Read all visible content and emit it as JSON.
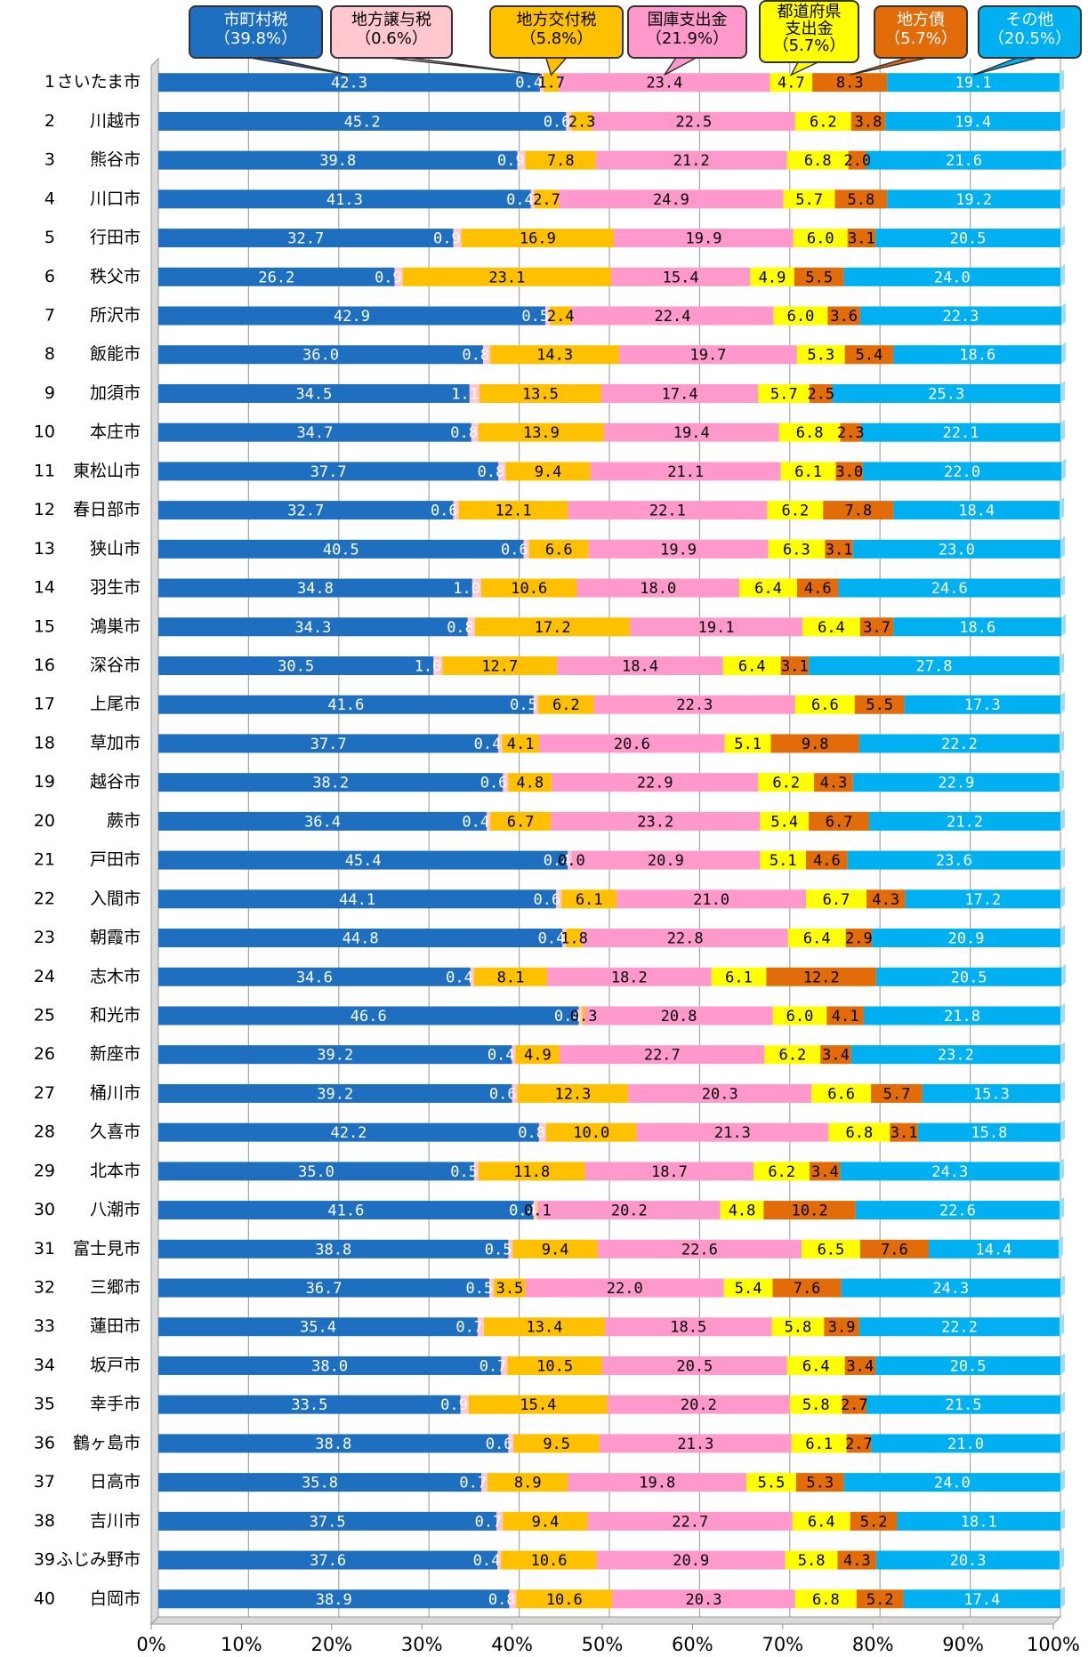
{
  "chart_data": {
    "type": "stacked-bar-horizontal",
    "row_numbers": [
      1,
      2,
      3,
      4,
      5,
      6,
      7,
      8,
      9,
      10,
      11,
      12,
      13,
      14,
      15,
      16,
      17,
      18,
      19,
      20,
      21,
      22,
      23,
      24,
      25,
      26,
      27,
      28,
      29,
      30,
      31,
      32,
      33,
      34,
      35,
      36,
      37,
      38,
      39,
      40
    ],
    "categories": [
      "さいたま市",
      "川越市",
      "熊谷市",
      "川口市",
      "行田市",
      "秩父市",
      "所沢市",
      "飯能市",
      "加須市",
      "本庄市",
      "東松山市",
      "春日部市",
      "狭山市",
      "羽生市",
      "鴻巣市",
      "深谷市",
      "上尾市",
      "草加市",
      "越谷市",
      "蕨市",
      "戸田市",
      "入間市",
      "朝霞市",
      "志木市",
      "和光市",
      "新座市",
      "桶川市",
      "久喜市",
      "北本市",
      "八潮市",
      "富士見市",
      "三郷市",
      "蓮田市",
      "坂戸市",
      "幸手市",
      "鶴ヶ島市",
      "日高市",
      "吉川市",
      "ふじみ野市",
      "白岡市"
    ],
    "series": [
      {
        "name": "市町村税",
        "share_label": "（39.8%）",
        "color": "#1f6fc0",
        "label_color": "#ffffff",
        "legend_text_color": "#ffffff",
        "values": [
          42.3,
          45.2,
          39.8,
          41.3,
          32.7,
          26.2,
          42.9,
          36.0,
          34.5,
          34.7,
          37.7,
          32.7,
          40.5,
          34.8,
          34.3,
          30.5,
          41.6,
          37.7,
          38.2,
          36.4,
          45.4,
          44.1,
          44.8,
          34.6,
          46.6,
          39.2,
          39.2,
          42.2,
          35.0,
          41.6,
          38.8,
          36.7,
          35.4,
          38.0,
          33.5,
          38.8,
          35.8,
          37.5,
          37.6,
          38.9
        ],
        "value_labels": [
          "42.3",
          "45.2",
          "39.8",
          "41.3",
          "32.7",
          "26.2",
          "42.9",
          "36.0",
          "34.5",
          "34.7",
          "37.7",
          "32.7",
          "40.5",
          "34.8",
          "34.3",
          "30.5",
          "41.6",
          "37.7",
          "38.2",
          "36.4",
          "45.4",
          "44.1",
          "44.8",
          "34.6",
          "46.6",
          "39.2",
          "39.2",
          "42.2",
          "35.0",
          "41.6",
          "38.8",
          "36.7",
          "35.4",
          "38.0",
          "33.5",
          "38.8",
          "35.8",
          "37.5",
          "37.6",
          "38.9"
        ]
      },
      {
        "name": "地方譲与税",
        "share_label": "（0.6%）",
        "color": "#ffc7ce",
        "label_color": "#ffffff",
        "legend_text_color": "#000000",
        "values": [
          0.4,
          0.6,
          0.9,
          0.4,
          0.9,
          0.9,
          0.5,
          0.8,
          1.1,
          0.8,
          0.8,
          0.6,
          0.6,
          1.0,
          0.8,
          1.0,
          0.5,
          0.4,
          0.6,
          0.4,
          0.4,
          0.6,
          0.4,
          0.4,
          0.4,
          0.4,
          0.6,
          0.8,
          0.5,
          0.4,
          0.5,
          0.5,
          0.7,
          0.7,
          0.9,
          0.6,
          0.7,
          0.7,
          0.4,
          0.8
        ],
        "value_labels": [
          "0.4",
          "0.6",
          "0.9",
          "0.4",
          "0.9",
          "0.9",
          "0.5",
          "0.8",
          "1.1",
          "0.8",
          "0.8",
          "0.6",
          "0.6",
          "1.0",
          "0.8",
          "1.0",
          "0.5",
          "0.4",
          "0.6",
          "0.4",
          "0.4",
          "0.6",
          "0.4",
          "0.4",
          "0.4",
          "0.4",
          "0.6",
          "0.8",
          "0.5",
          "0.4",
          "0.5",
          "0.5",
          "0.7",
          "0.7",
          "0.9",
          "0.6",
          "0.7",
          "0.7",
          "0.4",
          "0.8"
        ]
      },
      {
        "name": "地方交付税",
        "share_label": "（5.8%）",
        "color": "#ffc000",
        "label_color": "#000000",
        "legend_text_color": "#000000",
        "values": [
          1.7,
          2.3,
          7.8,
          2.7,
          16.9,
          23.1,
          2.4,
          14.3,
          13.5,
          13.9,
          9.4,
          12.1,
          6.6,
          10.6,
          17.2,
          12.7,
          6.2,
          4.1,
          4.8,
          6.7,
          0.0,
          6.1,
          1.8,
          8.1,
          0.3,
          4.9,
          12.3,
          10.0,
          11.8,
          0.1,
          9.4,
          3.5,
          13.4,
          10.5,
          15.4,
          9.5,
          8.9,
          9.4,
          10.6,
          10.6
        ],
        "value_labels": [
          "1.7",
          "2.3",
          "7.8",
          "2.7",
          "16.9",
          "23.1",
          "2.4",
          "14.3",
          "13.5",
          "13.9",
          "9.4",
          "12.1",
          "6.6",
          "10.6",
          "17.2",
          "12.7",
          "6.2",
          "4.1",
          "4.8",
          "6.7",
          "0.0",
          "6.1",
          "1.8",
          "8.1",
          "0.3",
          "4.9",
          "12.3",
          "10.0",
          "11.8",
          "0.1",
          "9.4",
          "3.5",
          "13.4",
          "10.5",
          "15.4",
          "9.5",
          "8.9",
          "9.4",
          "10.6",
          "10.6"
        ]
      },
      {
        "name": "国庫支出金",
        "share_label": "（21.9%）",
        "color": "#ff99cc",
        "label_color": "#000000",
        "legend_text_color": "#000000",
        "values": [
          23.4,
          22.5,
          21.2,
          24.9,
          19.9,
          15.4,
          22.4,
          19.7,
          17.4,
          19.4,
          21.1,
          22.1,
          19.9,
          18.0,
          19.1,
          18.4,
          22.3,
          20.6,
          22.9,
          23.2,
          20.9,
          21.0,
          22.8,
          18.2,
          20.8,
          22.7,
          20.3,
          21.3,
          18.7,
          20.2,
          22.6,
          22.0,
          18.5,
          20.5,
          20.2,
          21.3,
          19.8,
          22.7,
          20.9,
          20.3
        ],
        "value_labels": [
          "23.4",
          "22.5",
          "21.2",
          "24.9",
          "19.9",
          "15.4",
          "22.4",
          "19.7",
          "17.4",
          "19.4",
          "21.1",
          "22.1",
          "19.9",
          "18.0",
          "19.1",
          "18.4",
          "22.3",
          "20.6",
          "22.9",
          "23.2",
          "20.9",
          "21.0",
          "22.8",
          "18.2",
          "20.8",
          "22.7",
          "20.3",
          "21.3",
          "18.7",
          "20.2",
          "22.6",
          "22.0",
          "18.5",
          "20.5",
          "20.2",
          "21.3",
          "19.8",
          "22.7",
          "20.9",
          "20.3"
        ]
      },
      {
        "name": "都道府県支出金",
        "share_label": "（5.7%）",
        "color": "#ffff00",
        "label_color": "#000000",
        "legend_text_color": "#000000",
        "values": [
          4.7,
          6.2,
          6.8,
          5.7,
          6.0,
          4.9,
          6.0,
          5.3,
          5.7,
          6.8,
          6.1,
          6.2,
          6.3,
          6.4,
          6.4,
          6.4,
          6.6,
          5.1,
          6.2,
          5.4,
          5.1,
          6.7,
          6.4,
          6.1,
          6.0,
          6.2,
          6.6,
          6.8,
          6.2,
          4.8,
          6.5,
          5.4,
          5.8,
          6.4,
          5.8,
          6.1,
          5.5,
          6.4,
          5.8,
          6.8
        ],
        "value_labels": [
          "4.7",
          "6.2",
          "6.8",
          "5.7",
          "6.0",
          "4.9",
          "6.0",
          "5.3",
          "5.7",
          "6.8",
          "6.1",
          "6.2",
          "6.3",
          "6.4",
          "6.4",
          "6.4",
          "6.6",
          "5.1",
          "6.2",
          "5.4",
          "5.1",
          "6.7",
          "6.4",
          "6.1",
          "6.0",
          "6.2",
          "6.6",
          "6.8",
          "6.2",
          "4.8",
          "6.5",
          "5.4",
          "5.8",
          "6.4",
          "5.8",
          "6.1",
          "5.5",
          "6.4",
          "5.8",
          "6.8"
        ]
      },
      {
        "name": "地方債",
        "share_label": "（5.7%）",
        "color": "#e26b0a",
        "label_color": "#000000",
        "legend_text_color": "#ffffff",
        "values": [
          8.3,
          3.8,
          2.0,
          5.8,
          3.1,
          5.5,
          3.6,
          5.4,
          2.5,
          2.3,
          3.0,
          7.8,
          3.1,
          4.6,
          3.7,
          3.1,
          5.5,
          9.8,
          4.3,
          6.7,
          4.6,
          4.3,
          2.9,
          12.2,
          4.1,
          3.4,
          5.7,
          3.1,
          3.4,
          10.2,
          7.6,
          7.6,
          3.9,
          3.4,
          2.7,
          2.7,
          5.3,
          5.2,
          4.3,
          5.2
        ],
        "value_labels": [
          "8.3",
          "3.8",
          "2.0",
          "5.8",
          "3.1",
          "5.5",
          "3.6",
          "5.4",
          "2.5",
          "2.3",
          "3.0",
          "7.8",
          "3.1",
          "4.6",
          "3.7",
          "3.1",
          "5.5",
          "9.8",
          "4.3",
          "6.7",
          "4.6",
          "4.3",
          "2.9",
          "12.2",
          "4.1",
          "3.4",
          "5.7",
          "3.1",
          "3.4",
          "10.2",
          "7.6",
          "7.6",
          "3.9",
          "3.4",
          "2.7",
          "2.7",
          "5.3",
          "5.2",
          "4.3",
          "5.2"
        ]
      },
      {
        "name": "その他",
        "share_label": "（20.5%）",
        "color": "#00b0f0",
        "label_color": "#ffffff",
        "legend_text_color": "#ffffff",
        "values": [
          19.1,
          19.4,
          21.6,
          19.2,
          20.5,
          24.0,
          22.3,
          18.6,
          25.3,
          22.1,
          22.0,
          18.4,
          23.0,
          24.6,
          18.6,
          27.8,
          17.3,
          22.2,
          22.9,
          21.2,
          23.6,
          17.2,
          20.9,
          20.5,
          21.8,
          23.2,
          15.3,
          15.8,
          24.3,
          22.6,
          14.4,
          24.3,
          22.2,
          20.5,
          21.5,
          21.0,
          24.0,
          18.1,
          20.3,
          17.4
        ],
        "value_labels": [
          "19.1",
          "19.4",
          "21.6",
          "19.2",
          "20.5",
          "24.0",
          "22.3",
          "18.6",
          "25.3",
          "22.1",
          "22.0",
          "18.4",
          "23.0",
          "24.6",
          "18.6",
          "27.8",
          "17.3",
          "22.2",
          "22.9",
          "21.2",
          "23.6",
          "17.2",
          "20.9",
          "20.5",
          "21.8",
          "23.2",
          "15.3",
          "15.8",
          "24.3",
          "22.6",
          "14.4",
          "24.3",
          "22.2",
          "20.5",
          "21.5",
          "21.0",
          "24.0",
          "18.1",
          "20.3",
          "17.4"
        ]
      }
    ],
    "xlim": [
      0,
      100
    ],
    "xticks": [
      {
        "value": 0,
        "label": "0%"
      },
      {
        "value": 10,
        "label": "10%"
      },
      {
        "value": 20,
        "label": "20%"
      },
      {
        "value": 30,
        "label": "30%"
      },
      {
        "value": 40,
        "label": "40%"
      },
      {
        "value": 50,
        "label": "50%"
      },
      {
        "value": 60,
        "label": "60%"
      },
      {
        "value": 70,
        "label": "70%"
      },
      {
        "value": 80,
        "label": "80%"
      },
      {
        "value": 90,
        "label": "90%"
      },
      {
        "value": 100,
        "label": "100%"
      }
    ],
    "grid": true
  }
}
